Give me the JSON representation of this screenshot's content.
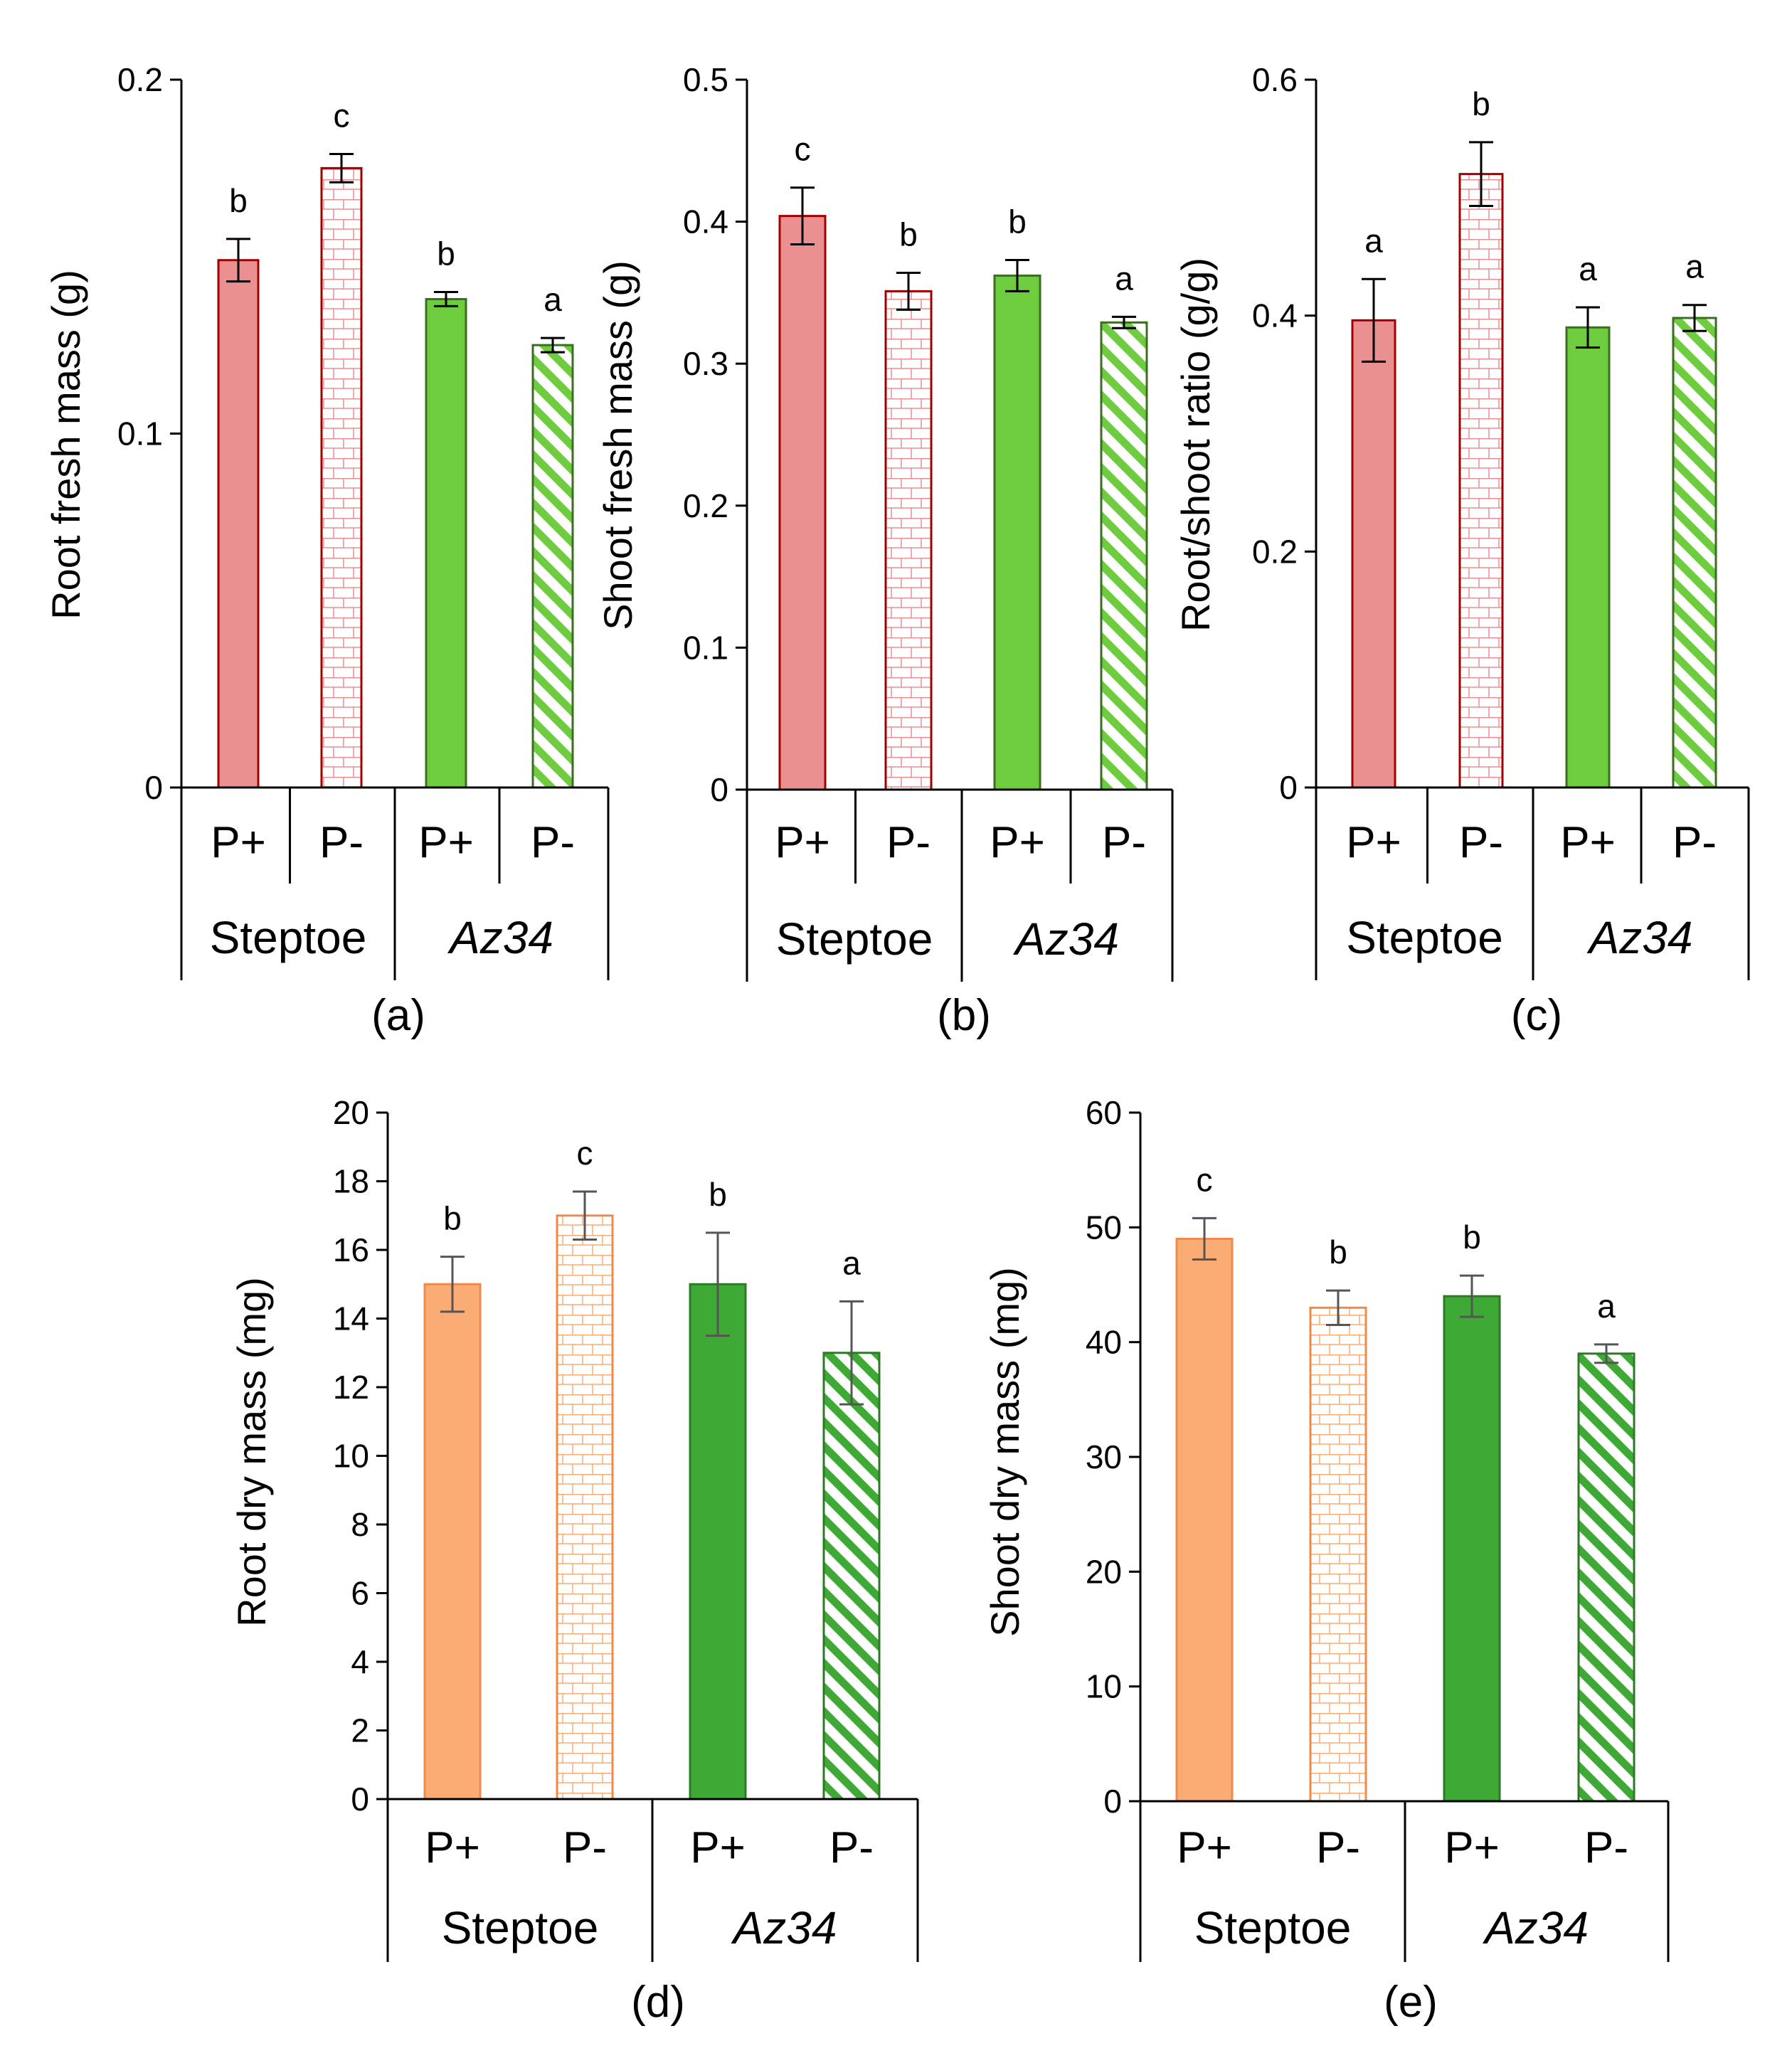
{
  "colors": {
    "fresh_steptoe": "#eb9090",
    "fresh_steptoe_outline": "#a00000",
    "fresh_az34": "#6ecc3f",
    "fresh_az34_outline": "#5aa82e",
    "dry_steptoe": "#fbac74",
    "dry_steptoe_outline": "#f08a4b",
    "dry_az34": "#3eaa35",
    "dry_az34_outline": "#3eaa35",
    "axis": "#000000",
    "error_bar": "#555555"
  },
  "chart_data": [
    {
      "panel": "(a)",
      "type": "bar",
      "ylabel": "Root fresh mass (g)",
      "ylim": [
        0,
        0.2
      ],
      "yticks": [
        "0",
        "0.1",
        "0.2"
      ],
      "categories": [
        "P+",
        "P-",
        "P+",
        "P-"
      ],
      "groups": [
        "Steptoe",
        "Az34"
      ],
      "values": [
        0.149,
        0.175,
        0.138,
        0.125
      ],
      "errors": [
        0.006,
        0.004,
        0.002,
        0.002
      ],
      "significance": [
        "b",
        "c",
        "b",
        "a"
      ],
      "fills": [
        "solid",
        "brick",
        "solid",
        "stripe"
      ]
    },
    {
      "panel": "(b)",
      "type": "bar",
      "ylabel": "Shoot fresh mass (g)",
      "ylim": [
        0,
        0.5
      ],
      "yticks": [
        "0",
        "0.1",
        "0.2",
        "0.3",
        "0.4",
        "0.5"
      ],
      "categories": [
        "P+",
        "P-",
        "P+",
        "P-"
      ],
      "groups": [
        "Steptoe",
        "Az34"
      ],
      "values": [
        0.404,
        0.351,
        0.362,
        0.329
      ],
      "errors": [
        0.02,
        0.013,
        0.011,
        0.004
      ],
      "significance": [
        "c",
        "b",
        "b",
        "a"
      ],
      "fills": [
        "solid",
        "brick",
        "solid",
        "stripe"
      ]
    },
    {
      "panel": "(c)",
      "type": "bar",
      "ylabel": "Root/shoot ratio (g/g)",
      "ylim": [
        0,
        0.6
      ],
      "yticks": [
        "0",
        "0.2",
        "0.4",
        "0.6"
      ],
      "categories": [
        "P+",
        "P-",
        "P+",
        "P-"
      ],
      "groups": [
        "Steptoe",
        "Az34"
      ],
      "values": [
        0.396,
        0.52,
        0.39,
        0.398
      ],
      "errors": [
        0.035,
        0.027,
        0.017,
        0.011
      ],
      "significance": [
        "a",
        "b",
        "a",
        "a"
      ],
      "fills": [
        "solid",
        "brick",
        "solid",
        "stripe"
      ]
    },
    {
      "panel": "(d)",
      "type": "bar",
      "ylabel": "Root dry mass (mg)",
      "ylim": [
        0,
        20
      ],
      "yticks": [
        "0",
        "2",
        "4",
        "6",
        "8",
        "10",
        "12",
        "14",
        "16",
        "18",
        "20"
      ],
      "categories": [
        "P+",
        "P-",
        "P+",
        "P-"
      ],
      "groups": [
        "Steptoe",
        "Az34"
      ],
      "values": [
        15,
        17,
        15,
        13
      ],
      "errors": [
        0.8,
        0.7,
        1.5,
        1.5
      ],
      "significance": [
        "b",
        "c",
        "b",
        "a"
      ],
      "fills": [
        "solid",
        "brick",
        "solid",
        "stripe"
      ]
    },
    {
      "panel": "(e)",
      "type": "bar",
      "ylabel": "Shoot dry mass (mg)",
      "ylim": [
        0,
        60
      ],
      "yticks": [
        "0",
        "10",
        "20",
        "30",
        "40",
        "50",
        "60"
      ],
      "categories": [
        "P+",
        "P-",
        "P+",
        "P-"
      ],
      "groups": [
        "Steptoe",
        "Az34"
      ],
      "values": [
        49,
        43,
        44,
        39
      ],
      "errors": [
        1.8,
        1.5,
        1.8,
        0.8
      ],
      "significance": [
        "c",
        "b",
        "b",
        "a"
      ],
      "fills": [
        "solid",
        "brick",
        "solid",
        "stripe"
      ]
    }
  ]
}
